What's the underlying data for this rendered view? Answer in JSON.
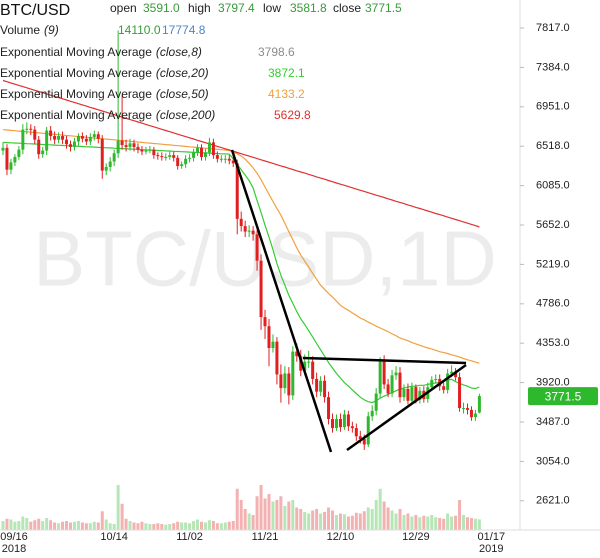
{
  "chart_data": {
    "type": "candlestick",
    "title": "BTC/USD",
    "watermark": "BTC/USD,1D",
    "header": [
      {
        "label": "open",
        "value": "3591.0"
      },
      {
        "label": "high",
        "value": "3797.4"
      },
      {
        "label": "low",
        "value": "3581.8"
      },
      {
        "label": "close",
        "value": "3771.5"
      }
    ],
    "header_value_color": "#3a9a3a",
    "color_up": "#2eb82e",
    "color_down": "#e02020",
    "categories": [
      "09/16\n2018",
      null,
      null,
      null,
      null,
      null,
      null,
      null,
      null,
      null,
      null,
      null,
      null,
      null,
      null,
      null,
      null,
      null,
      null,
      null,
      null,
      null,
      null,
      null,
      null,
      null,
      null,
      null,
      "10/14",
      null,
      null,
      null,
      null,
      null,
      null,
      null,
      null,
      null,
      null,
      null,
      null,
      null,
      null,
      null,
      null,
      null,
      null,
      "11/02",
      null,
      null,
      null,
      null,
      null,
      null,
      null,
      null,
      null,
      null,
      null,
      null,
      null,
      null,
      null,
      null,
      null,
      null,
      "11/21",
      null,
      null,
      null,
      null,
      null,
      null,
      null,
      null,
      null,
      null,
      null,
      null,
      null,
      null,
      null,
      null,
      null,
      null,
      "12/10",
      null,
      null,
      null,
      null,
      null,
      null,
      null,
      null,
      null,
      null,
      null,
      null,
      null,
      null,
      null,
      null,
      null,
      null,
      "12/29",
      null,
      null,
      null,
      null,
      null,
      null,
      null,
      null,
      null,
      null,
      null,
      null,
      null,
      null,
      null,
      null,
      null,
      null,
      "01/17\n2019"
    ],
    "open": [
      6470,
      6500,
      6260,
      6340,
      6400,
      6480,
      6700,
      6710,
      6700,
      6590,
      6430,
      6470,
      6690,
      6630,
      6590,
      6630,
      6590,
      6540,
      6510,
      6570,
      6630,
      6600,
      6570,
      6620,
      6650,
      6600,
      6250,
      6290,
      6350,
      6440,
      6580,
      6530,
      6510,
      6550,
      6510,
      6480,
      6460,
      6470,
      6480,
      6420,
      6410,
      6400,
      6400,
      6420,
      6390,
      6300,
      6320,
      6380,
      6390,
      6450,
      6500,
      6400,
      6450,
      6560,
      6420,
      6380,
      6380,
      6380,
      6360,
      6330,
      5720,
      5640,
      5580,
      5590,
      5550,
      5260,
      4640,
      4540,
      4300,
      4370,
      4010,
      3860,
      4020,
      3780,
      4260,
      4210,
      4050,
      4150,
      4150,
      3960,
      3820,
      3940,
      3760,
      3520,
      3420,
      3520,
      3430,
      3570,
      3440,
      3420,
      3330,
      3300,
      3240,
      3550,
      3610,
      3800,
      4150,
      3900,
      3800,
      4000,
      4030,
      3760,
      3850,
      3720,
      3870,
      3730,
      3830,
      3740,
      3870,
      3950,
      3960,
      3880,
      3840,
      4020,
      4040,
      3980,
      3640,
      3640,
      3620,
      3540,
      3591,
      null,
      null,
      null
    ],
    "high": [
      6560,
      6540,
      6380,
      6430,
      6520,
      6760,
      6780,
      6760,
      6740,
      6630,
      6510,
      6730,
      6740,
      6680,
      6670,
      6680,
      6630,
      6580,
      6610,
      6660,
      6670,
      6640,
      6660,
      6690,
      6680,
      6640,
      6330,
      6400,
      6480,
      7790,
      7080,
      6590,
      6600,
      6590,
      6550,
      6520,
      6510,
      6520,
      6510,
      6450,
      6450,
      6440,
      6460,
      6460,
      6420,
      6350,
      6420,
      6430,
      6490,
      6540,
      6540,
      6490,
      6610,
      6600,
      6460,
      6420,
      6420,
      6420,
      6400,
      6370,
      5800,
      5700,
      5650,
      5640,
      5600,
      5330,
      4720,
      4620,
      4450,
      4420,
      4120,
      4100,
      4090,
      4320,
      4350,
      4280,
      4230,
      4270,
      4210,
      4030,
      3990,
      4000,
      3820,
      3580,
      3570,
      3580,
      3620,
      3610,
      3490,
      3470,
      3390,
      3350,
      3600,
      3670,
      3860,
      4200,
      4220,
      3960,
      4060,
      4100,
      4090,
      3900,
      3910,
      3920,
      3900,
      3870,
      3880,
      3920,
      3990,
      4010,
      4010,
      3920,
      4070,
      4110,
      4080,
      4030,
      3700,
      3690,
      3660,
      3620,
      3797.4,
      null,
      null,
      null
    ],
    "low": [
      6420,
      6200,
      6210,
      6300,
      6370,
      6430,
      6650,
      6640,
      6540,
      6380,
      6390,
      6420,
      6580,
      6540,
      6550,
      6540,
      6490,
      6460,
      6470,
      6520,
      6560,
      6530,
      6530,
      6580,
      6550,
      6160,
      6200,
      6240,
      6300,
      6390,
      6480,
      6460,
      6470,
      6460,
      6440,
      6420,
      6430,
      6440,
      6380,
      6370,
      6360,
      6360,
      6370,
      6350,
      6260,
      6270,
      6280,
      6340,
      6350,
      6410,
      6360,
      6360,
      6410,
      6380,
      6340,
      6340,
      6330,
      6320,
      6290,
      5550,
      5580,
      5520,
      5520,
      5480,
      5150,
      4500,
      4400,
      4100,
      4250,
      3900,
      3700,
      3800,
      3680,
      3730,
      4150,
      3990,
      4000,
      4080,
      3900,
      3760,
      3770,
      3700,
      3460,
      3370,
      3390,
      3380,
      3400,
      3390,
      3370,
      3280,
      3250,
      3180,
      3210,
      3500,
      3560,
      3750,
      3850,
      3760,
      3760,
      3950,
      3700,
      3720,
      3680,
      3680,
      3690,
      3690,
      3700,
      3700,
      3830,
      3910,
      3830,
      3800,
      3800,
      3980,
      3940,
      3600,
      3580,
      3570,
      3500,
      3500,
      3581.8,
      null,
      null,
      null
    ],
    "close": [
      6500,
      6260,
      6340,
      6400,
      6480,
      6700,
      6710,
      6700,
      6590,
      6430,
      6470,
      6690,
      6630,
      6590,
      6630,
      6590,
      6540,
      6510,
      6570,
      6630,
      6600,
      6570,
      6620,
      6650,
      6600,
      6250,
      6290,
      6350,
      6440,
      6580,
      6530,
      6510,
      6550,
      6510,
      6480,
      6460,
      6470,
      6480,
      6420,
      6410,
      6400,
      6400,
      6420,
      6390,
      6300,
      6320,
      6380,
      6390,
      6450,
      6500,
      6400,
      6450,
      6560,
      6420,
      6380,
      6380,
      6380,
      6360,
      6330,
      5720,
      5640,
      5580,
      5590,
      5550,
      5260,
      4640,
      4540,
      4300,
      4370,
      4010,
      3860,
      4020,
      3780,
      4260,
      4210,
      4050,
      4150,
      4150,
      3960,
      3820,
      3940,
      3760,
      3520,
      3420,
      3520,
      3430,
      3570,
      3440,
      3420,
      3330,
      3300,
      3240,
      3550,
      3610,
      3800,
      4150,
      3900,
      3800,
      4000,
      4030,
      3760,
      3850,
      3720,
      3870,
      3730,
      3830,
      3740,
      3870,
      3950,
      3960,
      3880,
      3840,
      4020,
      4040,
      3980,
      3640,
      3640,
      3620,
      3540,
      3580,
      3771.5,
      null,
      null,
      null
    ],
    "price_tag_color": "#2eb82e",
    "ylim": [
      2190,
      8125
    ],
    "yticks": [
      {
        "value": 2621,
        "label": "2621.0"
      },
      {
        "value": 3054,
        "label": "3054.0"
      },
      {
        "value": 3487,
        "label": "3487.0"
      },
      {
        "value": 3920,
        "label": "3920.0"
      },
      {
        "value": 4353,
        "label": "4353.0"
      },
      {
        "value": 4786,
        "label": "4786.0"
      },
      {
        "value": 5219,
        "label": "5219.0"
      },
      {
        "value": 5652,
        "label": "5652.0"
      },
      {
        "value": 6085,
        "label": "6085.0"
      },
      {
        "value": 6518,
        "label": "6518.0"
      },
      {
        "value": 6951,
        "label": "6951.0"
      },
      {
        "value": 7384,
        "label": "7384.0"
      },
      {
        "value": 7817,
        "label": "7817.0"
      }
    ],
    "volume": {
      "name": "Volume",
      "params": "(9)",
      "last_label": "14110.0",
      "last_color": "#3a9a3a",
      "ma_label": "17774.8",
      "ma_color": "#4a86c8",
      "values": [
        12000,
        15000,
        14000,
        11000,
        12000,
        18000,
        16000,
        11000,
        13000,
        15000,
        12000,
        16000,
        13000,
        10000,
        9000,
        11000,
        12000,
        10000,
        11000,
        12000,
        10000,
        9000,
        9000,
        11000,
        10000,
        25000,
        14000,
        9000,
        8000,
        60000,
        35000,
        15000,
        12000,
        10000,
        9000,
        11000,
        9000,
        8000,
        8000,
        9000,
        8000,
        7000,
        8000,
        9000,
        11000,
        10000,
        10000,
        9000,
        12000,
        14000,
        11000,
        10000,
        13000,
        12000,
        9000,
        9000,
        10000,
        11000,
        12000,
        55000,
        40000,
        28000,
        22000,
        20000,
        45000,
        60000,
        42000,
        48000,
        38000,
        40000,
        45000,
        32000,
        38000,
        40000,
        30000,
        28000,
        24000,
        22000,
        26000,
        28000,
        22000,
        24000,
        30000,
        26000,
        20000,
        22000,
        21000,
        18000,
        19000,
        23000,
        22000,
        25000,
        30000,
        28000,
        40000,
        55000,
        38000,
        30000,
        26000,
        22000,
        28000,
        20000,
        22000,
        18000,
        20000,
        17000,
        19000,
        18000,
        20000,
        17000,
        16000,
        15000,
        22000,
        18000,
        19000,
        40000,
        20000,
        17000,
        16000,
        15000,
        14110,
        null,
        null,
        null
      ]
    },
    "indicators": [
      {
        "name": "Exponential Moving Average",
        "params": "(close,8)",
        "last_label": "3798.6",
        "color": "#8c8c8c"
      },
      {
        "name": "Exponential Moving Average",
        "params": "(close,20)",
        "last_label": "3872.1",
        "color": "#33cc33",
        "values": [
          6560,
          6558,
          6555,
          6553,
          6551,
          6549,
          6546,
          6544,
          6542,
          6540,
          6537,
          6535,
          6533,
          6530,
          6528,
          6526,
          6524,
          6521,
          6519,
          6517,
          6515,
          6512,
          6510,
          6508,
          6505,
          6503,
          6501,
          6499,
          6496,
          6494,
          6492,
          6490,
          6487,
          6485,
          6483,
          6480,
          6478,
          6476,
          6474,
          6471,
          6469,
          6467,
          6465,
          6462,
          6460,
          6458,
          6455,
          6453,
          6451,
          6449,
          6446,
          6444,
          6442,
          6440,
          6437,
          6435,
          6433,
          6430,
          6380,
          6320,
          6260,
          6200,
          6140,
          6060,
          5920,
          5790,
          5650,
          5520,
          5380,
          5230,
          5100,
          4990,
          4880,
          4790,
          4700,
          4620,
          4560,
          4490,
          4420,
          4350,
          4280,
          4210,
          4140,
          4080,
          4020,
          3970,
          3920,
          3880,
          3840,
          3800,
          3760,
          3730,
          3710,
          3700,
          3720,
          3750,
          3770,
          3790,
          3810,
          3830,
          3850,
          3860,
          3870,
          3880,
          3880,
          3890,
          3890,
          3900,
          3910,
          3915,
          3920,
          3935,
          3950,
          3955,
          3930,
          3910,
          3895,
          3880,
          3860,
          3855,
          3872.1,
          null,
          null,
          null
        ]
      },
      {
        "name": "Exponential Moving Average",
        "params": "(close,50)",
        "last_label": "4133.2",
        "color": "#f0a040",
        "values": [
          6700,
          6696,
          6692,
          6688,
          6684,
          6680,
          6676,
          6672,
          6668,
          6664,
          6660,
          6656,
          6652,
          6648,
          6644,
          6640,
          6636,
          6632,
          6628,
          6624,
          6620,
          6616,
          6612,
          6608,
          6604,
          6600,
          6596,
          6592,
          6588,
          6584,
          6580,
          6576,
          6572,
          6568,
          6564,
          6560,
          6556,
          6552,
          6548,
          6544,
          6540,
          6536,
          6532,
          6528,
          6524,
          6520,
          6516,
          6512,
          6508,
          6504,
          6500,
          6496,
          6492,
          6488,
          6484,
          6480,
          6476,
          6472,
          6455,
          6435,
          6410,
          6375,
          6330,
          6280,
          6220,
          6150,
          6070,
          5990,
          5910,
          5835,
          5760,
          5670,
          5580,
          5490,
          5400,
          5320,
          5255,
          5190,
          5120,
          5055,
          4990,
          4945,
          4900,
          4860,
          4815,
          4770,
          4740,
          4715,
          4685,
          4660,
          4630,
          4610,
          4585,
          4565,
          4540,
          4520,
          4500,
          4480,
          4455,
          4435,
          4410,
          4395,
          4380,
          4360,
          4345,
          4330,
          4315,
          4300,
          4290,
          4275,
          4260,
          4250,
          4240,
          4225,
          4215,
          4200,
          4185,
          4170,
          4160,
          4145,
          4133.2,
          null,
          null,
          null
        ]
      },
      {
        "name": "Exponential Moving Average",
        "params": "(close,200)",
        "last_label": "5629.8",
        "color": "#e03030",
        "values": [
          7240,
          7227,
          7213,
          7200,
          7186,
          7173,
          7160,
          7146,
          7133,
          7119,
          7106,
          7093,
          7079,
          7066,
          7052,
          7039,
          7026,
          7012,
          6999,
          6985,
          6972,
          6959,
          6945,
          6932,
          6918,
          6905,
          6892,
          6878,
          6865,
          6851,
          6838,
          6825,
          6811,
          6798,
          6784,
          6771,
          6758,
          6744,
          6731,
          6717,
          6704,
          6691,
          6677,
          6664,
          6650,
          6637,
          6624,
          6610,
          6597,
          6583,
          6570,
          6557,
          6543,
          6530,
          6516,
          6503,
          6490,
          6476,
          6463,
          6449,
          6436,
          6423,
          6409,
          6396,
          6382,
          6369,
          6356,
          6342,
          6329,
          6315,
          6302,
          6289,
          6275,
          6262,
          6248,
          6235,
          6222,
          6208,
          6195,
          6181,
          6168,
          6155,
          6141,
          6128,
          6114,
          6101,
          6088,
          6074,
          6061,
          6047,
          6034,
          6021,
          6007,
          5994,
          5980,
          5967,
          5954,
          5940,
          5927,
          5913,
          5900,
          5887,
          5873,
          5860,
          5846,
          5833,
          5820,
          5806,
          5793,
          5779,
          5766,
          5753,
          5739,
          5726,
          5712,
          5699,
          5686,
          5672,
          5659,
          5645,
          5629.8,
          null,
          null,
          null
        ]
      }
    ]
  }
}
